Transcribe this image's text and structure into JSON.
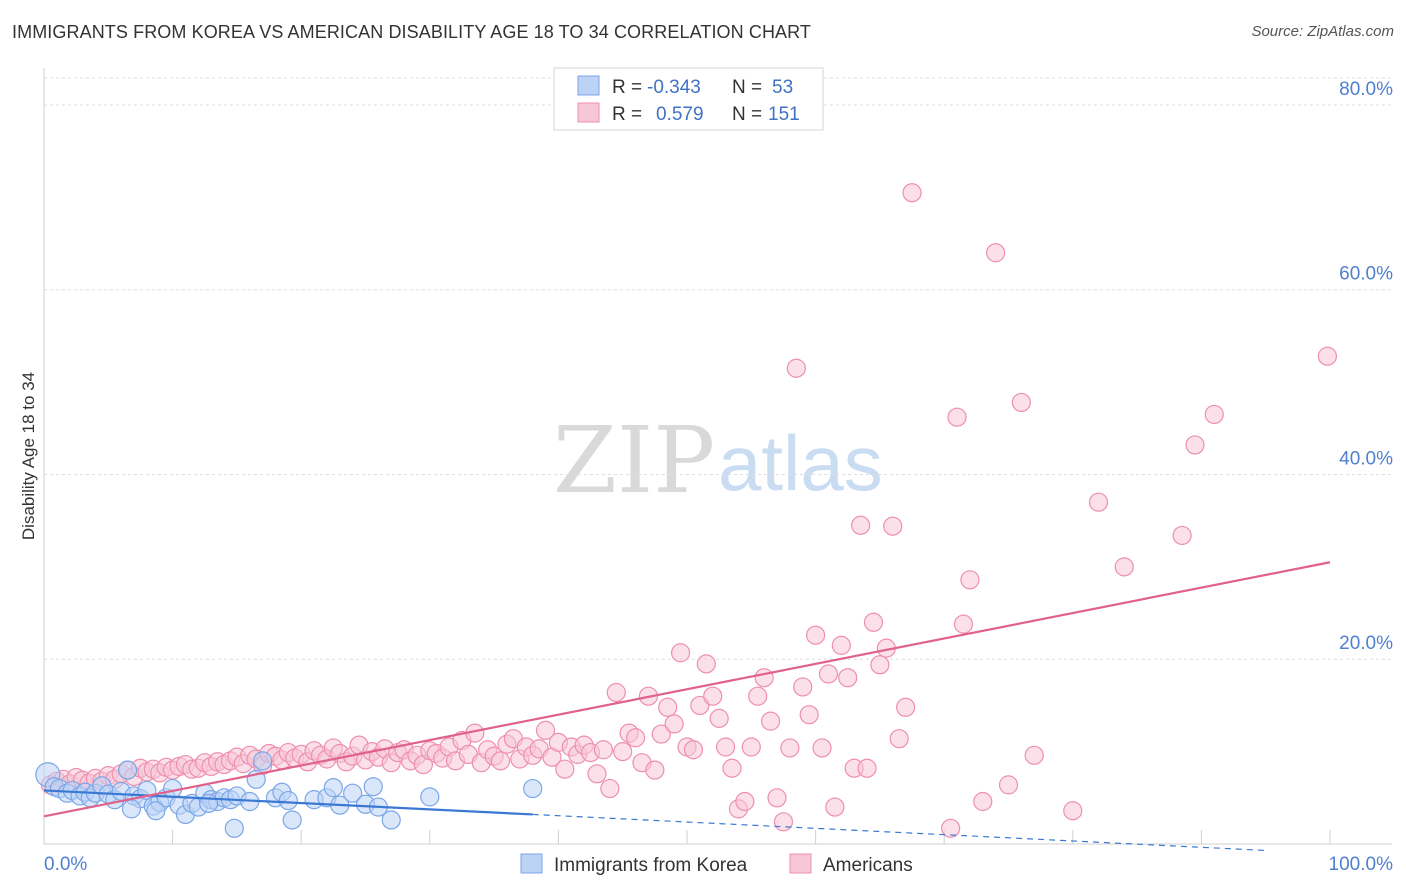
{
  "chart_data": {
    "type": "scatter",
    "title": "IMMIGRANTS FROM KOREA VS AMERICAN DISABILITY AGE 18 TO 34 CORRELATION CHART",
    "source": "Source: ZipAtlas.com",
    "xlabel": "",
    "ylabel": "Disability Age 18 to 34",
    "xlim": [
      0,
      100
    ],
    "ylim": [
      0,
      84
    ],
    "x_tick_labels": {
      "left": "0.0%",
      "right": "100.0%"
    },
    "y_ticks": [
      {
        "value": 20,
        "label": "20.0%"
      },
      {
        "value": 40,
        "label": "40.0%"
      },
      {
        "value": 60,
        "label": "60.0%"
      },
      {
        "value": 80,
        "label": "80.0%"
      }
    ],
    "grid": true,
    "watermark": {
      "zip": "ZIP",
      "atlas": "atlas"
    },
    "legend": {
      "r_label": "R =",
      "n_label": "N =",
      "rows": [
        {
          "r": "-0.343",
          "n": "53"
        },
        {
          "r": "0.579",
          "n": "151"
        }
      ]
    },
    "series": [
      {
        "name": "Immigrants from Korea",
        "color": "#7ba6e8",
        "fill": "#bcd3f6",
        "trend": {
          "x0": 0,
          "y0": 5.8,
          "x1": 38,
          "y1": 3.2,
          "dash_to_x": 95,
          "dash_to_y": -0.7,
          "color": "#3a78d4"
        },
        "points": [
          [
            0.3,
            7.5
          ],
          [
            0.8,
            6.2
          ],
          [
            1.2,
            6.0
          ],
          [
            1.8,
            5.5
          ],
          [
            2.2,
            5.8
          ],
          [
            2.8,
            5.2
          ],
          [
            3.2,
            5.6
          ],
          [
            3.6,
            5.0
          ],
          [
            4.0,
            5.5
          ],
          [
            4.5,
            6.3
          ],
          [
            5.0,
            5.4
          ],
          [
            5.5,
            4.8
          ],
          [
            6.0,
            5.7
          ],
          [
            6.5,
            8.0
          ],
          [
            7.0,
            5.2
          ],
          [
            7.5,
            4.9
          ],
          [
            8.0,
            5.8
          ],
          [
            8.5,
            4.1
          ],
          [
            9.0,
            4.5
          ],
          [
            9.5,
            5.0
          ],
          [
            10.0,
            6.0
          ],
          [
            10.5,
            4.2
          ],
          [
            11.0,
            3.2
          ],
          [
            11.5,
            4.4
          ],
          [
            12.0,
            4.0
          ],
          [
            12.5,
            5.5
          ],
          [
            13.0,
            4.8
          ],
          [
            13.5,
            4.6
          ],
          [
            14.0,
            5.0
          ],
          [
            14.5,
            4.8
          ],
          [
            6.8,
            3.8
          ],
          [
            8.7,
            3.6
          ],
          [
            15.0,
            5.2
          ],
          [
            16.0,
            4.6
          ],
          [
            16.5,
            7.0
          ],
          [
            12.8,
            4.4
          ],
          [
            17.0,
            9.0
          ],
          [
            18.0,
            5.0
          ],
          [
            18.5,
            5.6
          ],
          [
            19.0,
            4.7
          ],
          [
            19.3,
            2.6
          ],
          [
            21.0,
            4.8
          ],
          [
            22.0,
            5.0
          ],
          [
            22.5,
            6.1
          ],
          [
            23.0,
            4.2
          ],
          [
            24.0,
            5.5
          ],
          [
            25.0,
            4.3
          ],
          [
            25.6,
            6.2
          ],
          [
            26.0,
            4.0
          ],
          [
            27.0,
            2.6
          ],
          [
            30.0,
            5.1
          ],
          [
            38.0,
            6.0
          ],
          [
            14.8,
            1.7
          ]
        ]
      },
      {
        "name": "Americans",
        "color": "#ee8fae",
        "fill": "#f8c7d7",
        "trend": {
          "x0": 0,
          "y0": 3.0,
          "x1": 100,
          "y1": 30.5,
          "color": "#e0628c"
        },
        "points": [
          [
            0.5,
            6.4
          ],
          [
            1.0,
            6.8
          ],
          [
            1.5,
            7.0
          ],
          [
            2.0,
            6.5
          ],
          [
            2.5,
            7.2
          ],
          [
            3.0,
            6.9
          ],
          [
            3.5,
            6.6
          ],
          [
            4.0,
            7.1
          ],
          [
            4.5,
            6.8
          ],
          [
            5.0,
            7.4
          ],
          [
            5.5,
            7.0
          ],
          [
            6.0,
            7.6
          ],
          [
            6.5,
            8.0
          ],
          [
            7.0,
            7.3
          ],
          [
            7.5,
            8.2
          ],
          [
            8.0,
            7.8
          ],
          [
            8.5,
            8.1
          ],
          [
            9.0,
            7.7
          ],
          [
            9.5,
            8.3
          ],
          [
            10.0,
            8.0
          ],
          [
            10.5,
            8.4
          ],
          [
            11.0,
            8.6
          ],
          [
            11.5,
            8.1
          ],
          [
            12.0,
            8.2
          ],
          [
            12.5,
            8.8
          ],
          [
            13.0,
            8.4
          ],
          [
            13.5,
            8.9
          ],
          [
            14.0,
            8.6
          ],
          [
            14.5,
            9.0
          ],
          [
            15.0,
            9.4
          ],
          [
            15.5,
            8.7
          ],
          [
            16.0,
            9.6
          ],
          [
            16.5,
            9.2
          ],
          [
            17.0,
            8.5
          ],
          [
            17.5,
            9.8
          ],
          [
            18.0,
            9.5
          ],
          [
            18.5,
            9.1
          ],
          [
            19.0,
            9.9
          ],
          [
            19.5,
            9.3
          ],
          [
            20.0,
            9.7
          ],
          [
            20.5,
            8.9
          ],
          [
            21.0,
            10.1
          ],
          [
            21.5,
            9.6
          ],
          [
            22.0,
            9.2
          ],
          [
            22.5,
            10.4
          ],
          [
            23.0,
            9.8
          ],
          [
            23.5,
            8.9
          ],
          [
            24.0,
            9.5
          ],
          [
            24.5,
            10.7
          ],
          [
            25.0,
            9.1
          ],
          [
            25.5,
            10.0
          ],
          [
            26.0,
            9.4
          ],
          [
            26.5,
            10.3
          ],
          [
            27.0,
            8.8
          ],
          [
            27.5,
            9.9
          ],
          [
            28.0,
            10.2
          ],
          [
            28.5,
            9.0
          ],
          [
            29.0,
            9.6
          ],
          [
            29.5,
            8.6
          ],
          [
            30.0,
            10.1
          ],
          [
            30.5,
            9.8
          ],
          [
            31.0,
            9.3
          ],
          [
            31.5,
            10.5
          ],
          [
            32.0,
            9.0
          ],
          [
            32.5,
            11.2
          ],
          [
            33.0,
            9.7
          ],
          [
            33.5,
            12.0
          ],
          [
            34.0,
            8.8
          ],
          [
            34.5,
            10.2
          ],
          [
            35.0,
            9.5
          ],
          [
            35.5,
            9.0
          ],
          [
            36.0,
            10.8
          ],
          [
            36.5,
            11.4
          ],
          [
            37.0,
            9.2
          ],
          [
            37.5,
            10.5
          ],
          [
            38.0,
            9.6
          ],
          [
            38.5,
            10.3
          ],
          [
            39.0,
            12.3
          ],
          [
            39.5,
            9.4
          ],
          [
            40.0,
            11.0
          ],
          [
            40.5,
            8.1
          ],
          [
            41.0,
            10.5
          ],
          [
            41.5,
            9.7
          ],
          [
            42.0,
            10.7
          ],
          [
            42.5,
            9.9
          ],
          [
            43.0,
            7.6
          ],
          [
            43.5,
            10.2
          ],
          [
            44.0,
            6.0
          ],
          [
            44.5,
            16.4
          ],
          [
            45.0,
            10.0
          ],
          [
            45.5,
            12.0
          ],
          [
            46.0,
            11.5
          ],
          [
            46.5,
            8.8
          ],
          [
            47.0,
            16.0
          ],
          [
            47.5,
            8.0
          ],
          [
            48.0,
            11.9
          ],
          [
            48.5,
            14.8
          ],
          [
            49.0,
            13.0
          ],
          [
            49.5,
            20.7
          ],
          [
            50.0,
            10.5
          ],
          [
            50.5,
            10.2
          ],
          [
            51.0,
            15.0
          ],
          [
            51.5,
            19.5
          ],
          [
            52.0,
            16.0
          ],
          [
            52.5,
            13.6
          ],
          [
            53.0,
            10.5
          ],
          [
            53.5,
            8.2
          ],
          [
            54.0,
            3.8
          ],
          [
            54.5,
            4.6
          ],
          [
            55.0,
            10.5
          ],
          [
            55.5,
            16.0
          ],
          [
            56.0,
            18.0
          ],
          [
            56.5,
            13.3
          ],
          [
            57.0,
            5.0
          ],
          [
            57.5,
            2.4
          ],
          [
            58.0,
            10.4
          ],
          [
            58.5,
            51.5
          ],
          [
            59.0,
            17.0
          ],
          [
            59.5,
            14.0
          ],
          [
            60.0,
            22.6
          ],
          [
            60.5,
            10.4
          ],
          [
            61.0,
            18.4
          ],
          [
            61.5,
            4.0
          ],
          [
            62.0,
            21.5
          ],
          [
            62.5,
            18.0
          ],
          [
            63.0,
            8.2
          ],
          [
            63.5,
            34.5
          ],
          [
            64.0,
            8.2
          ],
          [
            64.5,
            24.0
          ],
          [
            65.0,
            19.4
          ],
          [
            65.5,
            21.2
          ],
          [
            66.0,
            34.4
          ],
          [
            66.5,
            11.4
          ],
          [
            67.0,
            14.8
          ],
          [
            67.5,
            70.5
          ],
          [
            70.5,
            1.7
          ],
          [
            71.0,
            46.2
          ],
          [
            71.5,
            23.8
          ],
          [
            72.0,
            28.6
          ],
          [
            73.0,
            4.6
          ],
          [
            74.0,
            64.0
          ],
          [
            75.0,
            6.4
          ],
          [
            76.0,
            47.8
          ],
          [
            77.0,
            9.6
          ],
          [
            80.0,
            3.6
          ],
          [
            82.0,
            37.0
          ],
          [
            84.0,
            30.0
          ],
          [
            88.5,
            33.4
          ],
          [
            89.5,
            43.2
          ],
          [
            91.0,
            46.5
          ],
          [
            99.8,
            52.8
          ]
        ]
      }
    ]
  }
}
